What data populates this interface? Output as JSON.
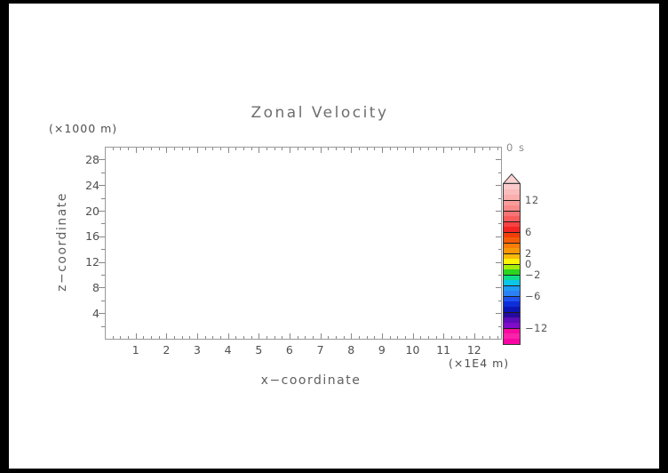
{
  "colors": {
    "frame": "#000000",
    "canvas": "#ffffff",
    "axis_line": "#999999",
    "tick": "#888888",
    "text": "#4f4f4f",
    "title_text": "#6e6e6e",
    "time_text": "#8c8c8c"
  },
  "chart_data": {
    "type": "heatmap",
    "title": "Zonal Velocity",
    "time_label": "0 s",
    "xlabel": "x−coordinate",
    "x_unit_label": "(×1E4 m)",
    "ylabel": "z−coordinate",
    "y_unit_label": "(×1000 m)",
    "xlim": [
      0,
      12.9
    ],
    "ylim": [
      0,
      30
    ],
    "x_major_ticks": [
      1,
      2,
      3,
      4,
      5,
      6,
      7,
      8,
      9,
      10,
      11,
      12
    ],
    "x_minor_step": 0.25,
    "y_major_ticks": [
      4,
      8,
      12,
      16,
      20,
      24,
      28
    ],
    "y_minor_step": 2,
    "grid": false,
    "field_values": [],
    "colorbar": {
      "position": "right",
      "value_max": 15,
      "value_min": -15,
      "arrow": {
        "fill": "#fbd2d2",
        "stroke": "#3a3a3a"
      },
      "labels": [
        {
          "text": "12",
          "value": 12
        },
        {
          "text": "6",
          "value": 6
        },
        {
          "text": "2",
          "value": 2
        },
        {
          "text": "0",
          "value": 0
        },
        {
          "text": "−2",
          "value": -2
        },
        {
          "text": "−6",
          "value": -6
        },
        {
          "text": "−12",
          "value": -12
        }
      ],
      "divider_values": [
        12,
        10,
        8,
        6,
        4,
        2,
        0,
        -2,
        -4,
        -6,
        -9,
        -12
      ],
      "segment_value_top": 15,
      "segment_value_step": 1,
      "segment_colors": [
        "#fccaca",
        "#fbbcbc",
        "#faaeae",
        "#fa9c9c",
        "#f98a8a",
        "#f87474",
        "#f75c5c",
        "#f64242",
        "#f52424",
        "#f33d07",
        "#f55c08",
        "#f77c08",
        "#f99708",
        "#fbb908",
        "#fdf306",
        "#a6ec09",
        "#2bd51f",
        "#0cdd8b",
        "#0bc6e4",
        "#1f9df4",
        "#2b80f5",
        "#1d52f0",
        "#0e2eda",
        "#0a16b6",
        "#250b9f",
        "#5e0bb8",
        "#7f0bcb",
        "#f70b9f",
        "#fa22ab",
        "#f806a4"
      ]
    }
  }
}
